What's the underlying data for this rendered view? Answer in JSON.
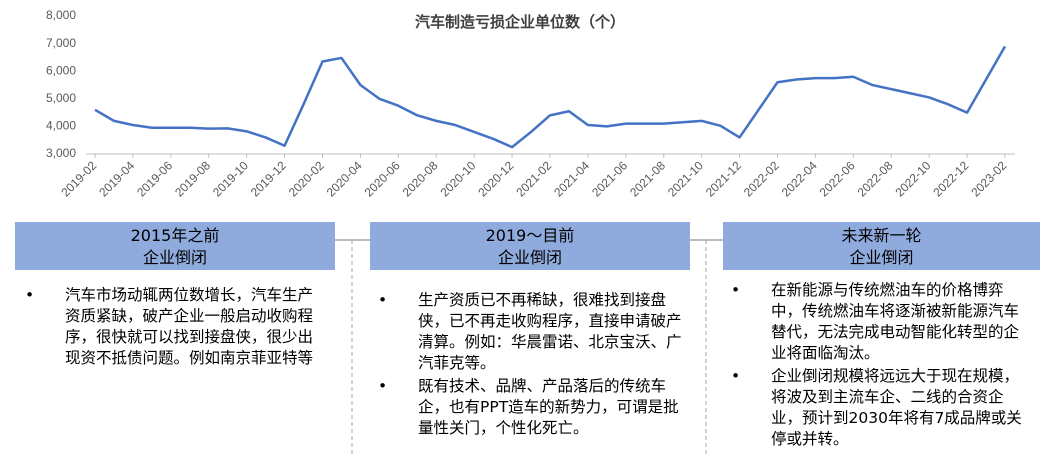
{
  "chart_data": {
    "type": "line",
    "title": "汽车制造亏损企业单位数（个）",
    "categories": [
      "2019-02",
      null,
      "2019-04",
      null,
      "2019-06",
      null,
      "2019-08",
      null,
      "2019-10",
      null,
      "2019-12",
      null,
      "2020-02",
      null,
      "2020-04",
      null,
      "2020-06",
      null,
      "2020-08",
      null,
      "2020-10",
      null,
      "2020-12",
      null,
      "2021-02",
      null,
      "2021-04",
      null,
      "2021-06",
      null,
      "2021-08",
      null,
      "2021-10",
      null,
      "2021-12",
      null,
      "2022-02",
      null,
      "2022-04",
      null,
      "2022-06",
      null,
      "2022-08",
      null,
      "2022-10",
      null,
      "2022-12",
      null,
      "2023-02"
    ],
    "series": [
      {
        "name": "汽车制造亏损企业单位数",
        "color": "#4472c4",
        "values": [
          4600,
          4200,
          4050,
          3950,
          3950,
          3950,
          3920,
          3930,
          3820,
          3600,
          3300,
          4800,
          6350,
          6480,
          5500,
          5000,
          4750,
          4400,
          4200,
          4050,
          3800,
          3550,
          3250,
          3800,
          4400,
          4550,
          4050,
          4000,
          4100,
          4100,
          4100,
          4150,
          4200,
          4020,
          3600,
          4600,
          5600,
          5700,
          5750,
          5750,
          5800,
          5500,
          5350,
          5200,
          5050,
          4800,
          4500,
          5700,
          6900
        ]
      }
    ],
    "ylim": [
      3000,
      8000
    ],
    "yticks": [
      {
        "value": 3000,
        "label": "3,000"
      },
      {
        "value": 4000,
        "label": "4,000"
      },
      {
        "value": 5000,
        "label": "5,000"
      },
      {
        "value": 6000,
        "label": "6,000"
      },
      {
        "value": 7000,
        "label": "7,000"
      },
      {
        "value": 8000,
        "label": "8,000"
      }
    ],
    "grid": false
  },
  "panels": [
    {
      "title": [
        "2015年之前",
        "企业倒闭"
      ],
      "bullets": [
        "汽车市场动辄两位数增长，汽车生产资质紧缺，破产企业一般启动收购程序，很快就可以找到接盘侠，很少出现资不抵债问题。例如南京菲亚特等"
      ]
    },
    {
      "title": [
        "2019～目前",
        "企业倒闭"
      ],
      "bullets": [
        "生产资质已不再稀缺，很难找到接盘侠，已不再走收购程序，直接申请破产清算。例如：华晨雷诺、北京宝沃、广汽菲克等。",
        "既有技术、品牌、产品落后的传统车企，也有PPT造车的新势力，可谓是批量性关门，个性化死亡。"
      ]
    },
    {
      "title": [
        "未来新一轮",
        "企业倒闭"
      ],
      "bullets": [
        "在新能源与传统燃油车的价格博弈中，传统燃油车将逐渐被新能源汽车替代，无法完成电动智能化转型的企业将面临淘汰。",
        "企业倒闭规模将远远大于现在规模，将波及到主流车企、二线的合资企业，预计到2030年将有7成品牌或关停或并转。"
      ]
    }
  ]
}
